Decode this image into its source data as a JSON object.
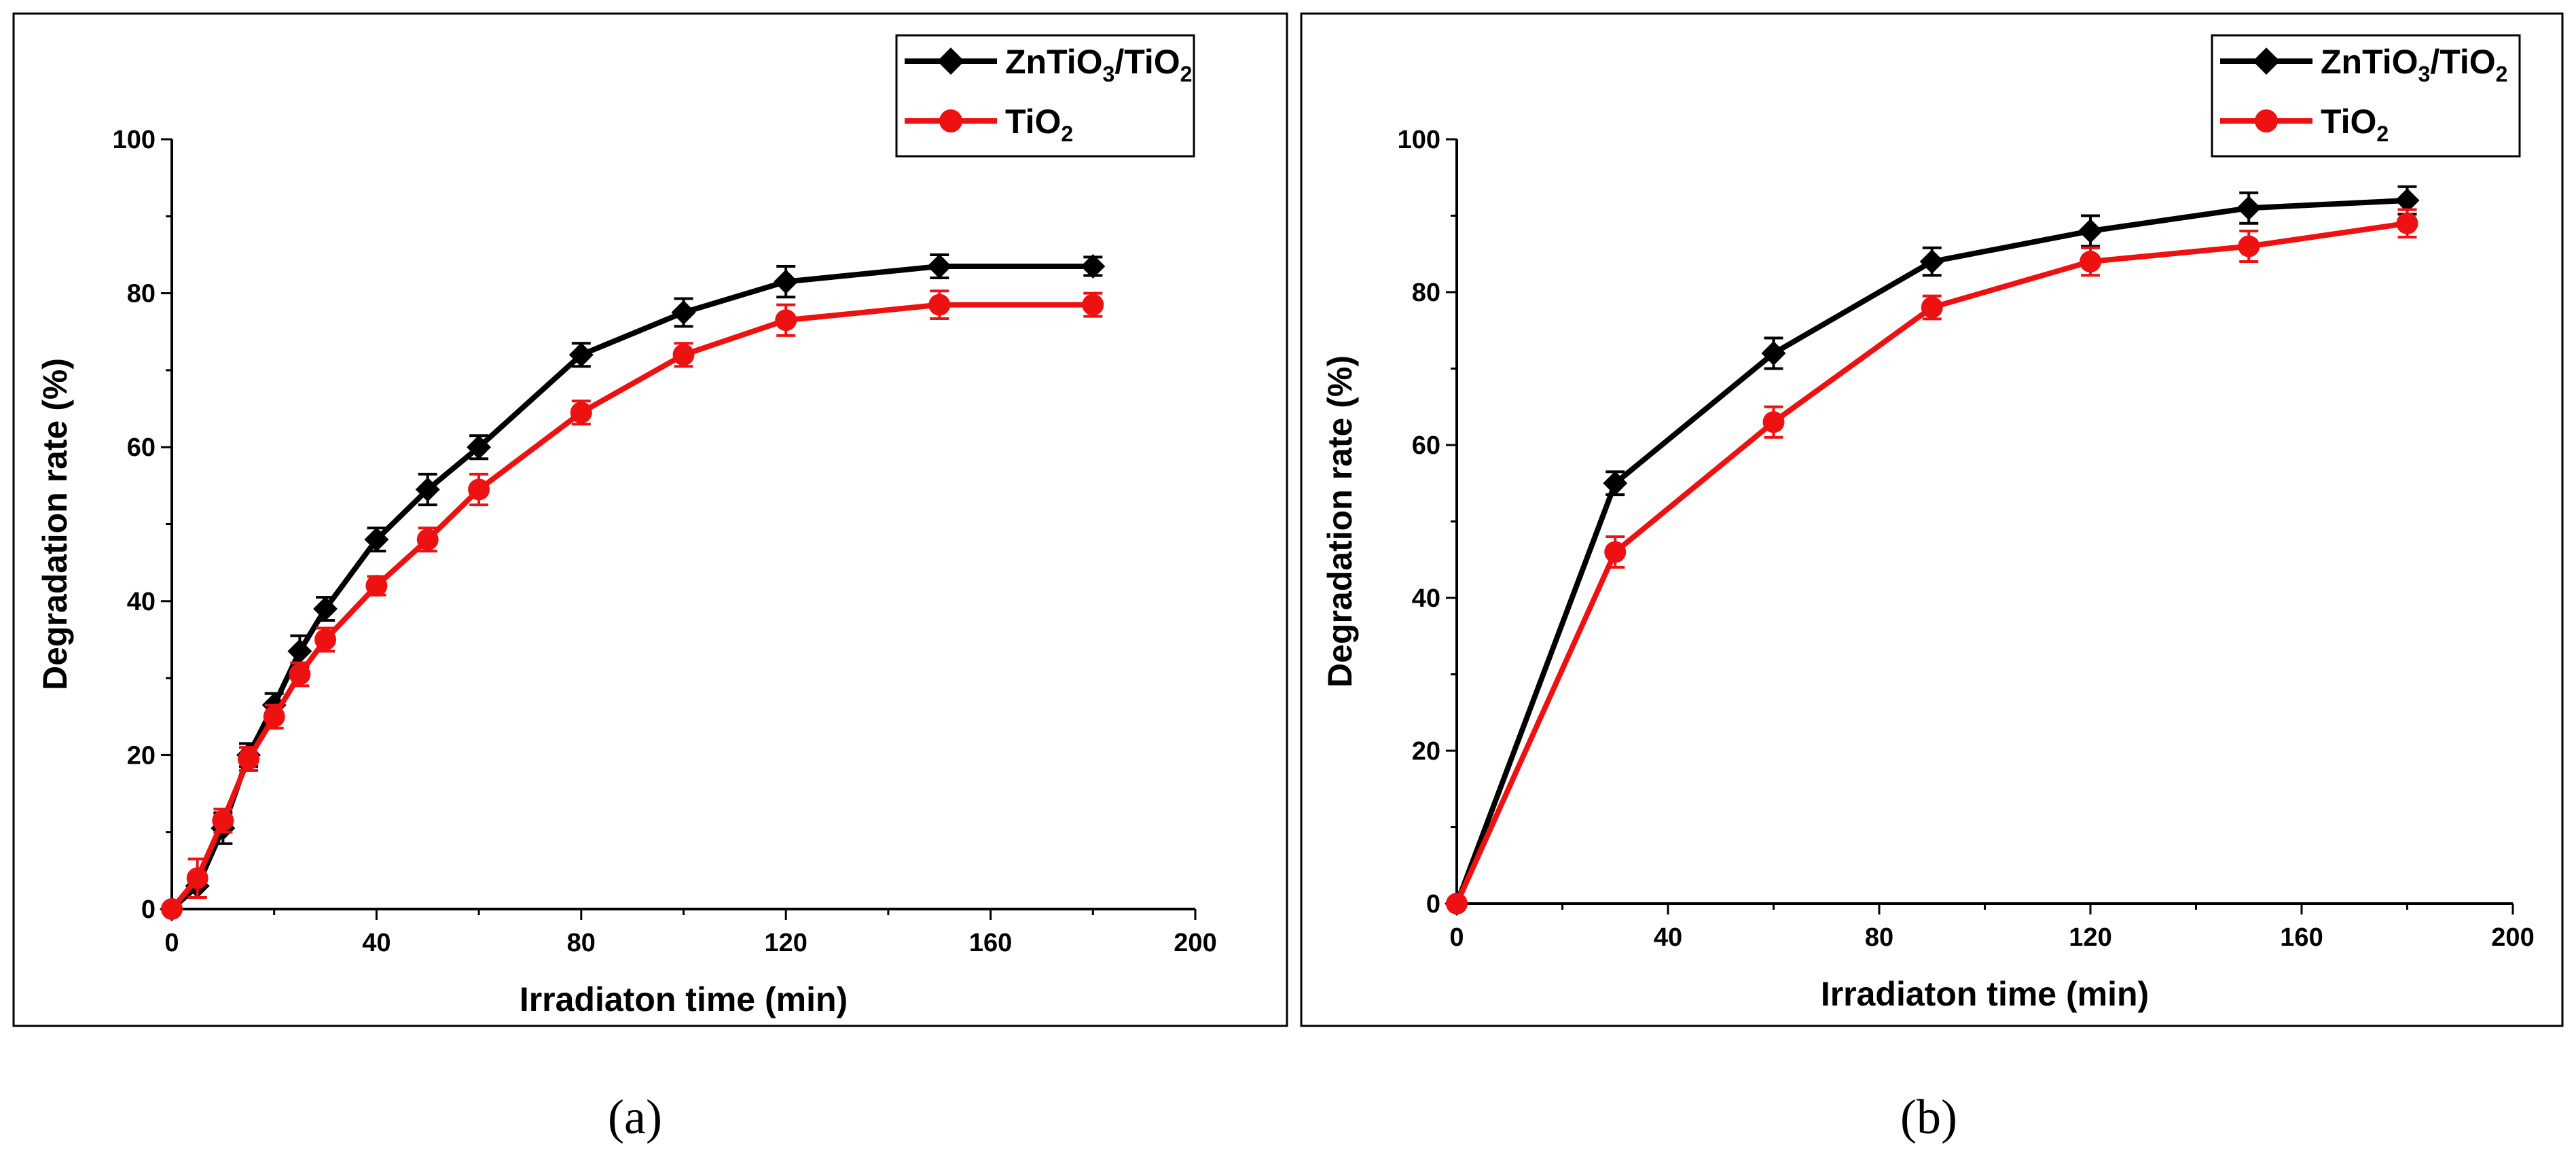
{
  "chart_data": [
    {
      "type": "line",
      "panel_label": "(a)",
      "xlabel": "Irradiaton time (min)",
      "ylabel": "Degradation rate (%)",
      "xlim": [
        0,
        200
      ],
      "ylim": [
        0,
        100
      ],
      "xticks": [
        0,
        40,
        80,
        120,
        160,
        200
      ],
      "yticks": [
        0,
        20,
        40,
        60,
        80,
        100
      ],
      "legend_position": "top-right",
      "series": [
        {
          "name": "ZnTiO3/TiO2",
          "legend_parts": [
            [
              "ZnTiO",
              "n"
            ],
            [
              "3",
              "sub"
            ],
            [
              "/TiO",
              "n"
            ],
            [
              "2",
              "sub"
            ]
          ],
          "color": "#000000",
          "marker": "diamond",
          "x": [
            0,
            5,
            10,
            15,
            20,
            25,
            30,
            40,
            50,
            60,
            80,
            100,
            120,
            150,
            180
          ],
          "y": [
            0,
            3,
            10.5,
            20,
            26.5,
            33.5,
            39,
            48,
            54.5,
            60,
            72,
            77.5,
            81.5,
            83.5,
            83.5
          ],
          "err": [
            0,
            1.5,
            2,
            1.5,
            1.5,
            2,
            1.5,
            1.5,
            2,
            1.5,
            1.5,
            1.8,
            2,
            1.5,
            1.2
          ]
        },
        {
          "name": "TiO2",
          "legend_parts": [
            [
              "TiO",
              "n"
            ],
            [
              "2",
              "sub"
            ]
          ],
          "color": "#ee1111",
          "marker": "circle",
          "x": [
            0,
            5,
            10,
            15,
            20,
            25,
            30,
            40,
            50,
            60,
            80,
            100,
            120,
            150,
            180
          ],
          "y": [
            0,
            4,
            11.5,
            19.5,
            25,
            30.5,
            35,
            42,
            48,
            54.5,
            64.5,
            72,
            76.5,
            78.5,
            78.5
          ],
          "err": [
            0,
            2.5,
            1.5,
            1.5,
            1.5,
            1.5,
            1.5,
            1.2,
            1.5,
            2,
            1.5,
            1.5,
            2,
            1.8,
            1.5
          ]
        }
      ]
    },
    {
      "type": "line",
      "panel_label": "(b)",
      "xlabel": "Irradiaton time (min)",
      "ylabel": "Degradation rate (%)",
      "xlim": [
        0,
        200
      ],
      "ylim": [
        0,
        100
      ],
      "xticks": [
        0,
        40,
        80,
        120,
        160,
        200
      ],
      "yticks": [
        0,
        20,
        40,
        60,
        80,
        100
      ],
      "legend_position": "top-right",
      "series": [
        {
          "name": "ZnTiO3/TiO2",
          "legend_parts": [
            [
              "ZnTiO",
              "n"
            ],
            [
              "3",
              "sub"
            ],
            [
              "/TiO",
              "n"
            ],
            [
              "2",
              "sub"
            ]
          ],
          "color": "#000000",
          "marker": "diamond",
          "x": [
            0,
            30,
            60,
            90,
            120,
            150,
            180
          ],
          "y": [
            0,
            55,
            72,
            84,
            88,
            91,
            92
          ],
          "err": [
            0,
            1.5,
            2,
            1.8,
            2,
            2,
            1.8
          ]
        },
        {
          "name": "TiO2",
          "legend_parts": [
            [
              "TiO",
              "n"
            ],
            [
              "2",
              "sub"
            ]
          ],
          "color": "#ee1111",
          "marker": "circle",
          "x": [
            0,
            30,
            60,
            90,
            120,
            150,
            180
          ],
          "y": [
            0,
            46,
            63,
            78,
            84,
            86,
            89
          ],
          "err": [
            0,
            2,
            2,
            1.5,
            1.8,
            2,
            1.8
          ]
        }
      ]
    }
  ]
}
